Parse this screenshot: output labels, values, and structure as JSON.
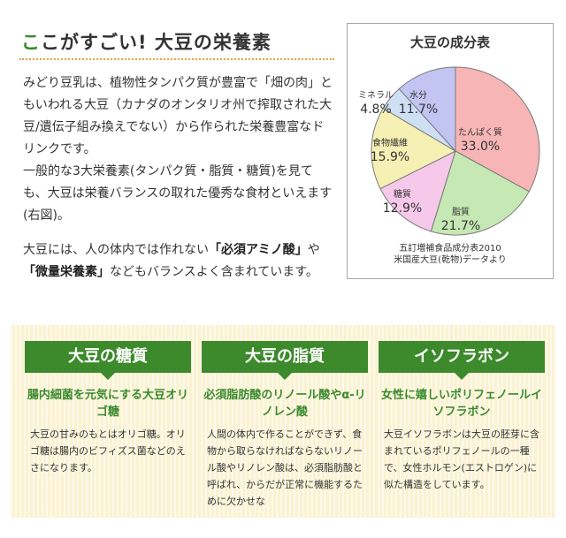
{
  "header": {
    "title_accent": "こ",
    "title_rest": "こがすごい! 大豆の栄養素"
  },
  "intro": {
    "p1": "みどり豆乳は、植物性タンパク質が豊富で「畑の肉」ともいわれる大豆（カナダのオンタリオ州で搾取された大豆/遺伝子組み換えでない）から作られた栄養豊富なドリンクです。",
    "p2": "一般的な3大栄養素(タンパク質・脂質・糖質)を見ても、大豆は栄養バランスの取れた優秀な食材といえます(右図)。",
    "p3_a": "大豆には、人の体内では作れない",
    "p3_b": "「必須アミノ酸」",
    "p3_c": "や",
    "p3_d": "「微量栄養素」",
    "p3_e": "などもバランスよく含まれています。"
  },
  "chart": {
    "title": "大豆の成分表",
    "note_line1": "五訂増補食品成分表2010",
    "note_line2": "米国産大豆(乾物)データより"
  },
  "chart_data": {
    "type": "pie",
    "title": "大豆の成分表",
    "slices": [
      {
        "label": "たんぱく質",
        "value": 33.0,
        "display": "33.0%",
        "color": "#f7b5b5"
      },
      {
        "label": "脂質",
        "value": 21.7,
        "display": "21.7%",
        "color": "#c6e8b4"
      },
      {
        "label": "糖質",
        "value": 12.9,
        "display": "12.9%",
        "color": "#f6c8ea"
      },
      {
        "label": "食物繊維",
        "value": 15.9,
        "display": "15.9%",
        "color": "#f6f0b4"
      },
      {
        "label": "ミネラル",
        "value": 4.8,
        "display": "4.8%",
        "color": "#cfe0f4"
      },
      {
        "label": "水分",
        "value": 11.7,
        "display": "11.7%",
        "color": "#c2c4f2"
      }
    ]
  },
  "cards": [
    {
      "title": "大豆の糖質",
      "subtitle": "腸内細菌を元気にする大豆オリゴ糖",
      "body": "大豆の甘みのもとはオリゴ糖。オリゴ糖は腸内のビフィズス菌などのえさになります。"
    },
    {
      "title": "大豆の脂質",
      "subtitle": "必須脂肪酸のリノール酸やα-リノレン酸",
      "body": "人間の体内で作ることができず、食物から取らなければならないリノール酸やリノレン酸は、必須脂肪酸と呼ばれ、からだが正常に機能するために欠かせな"
    },
    {
      "title": "イソフラボン",
      "subtitle": "女性に嬉しいポリフェノールイソフラボン",
      "body": "大豆イソフラボンは大豆の胚芽に含まれているポリフェノールの一種で、女性ホルモン(エストロゲン)に似た構造をしています。"
    }
  ]
}
